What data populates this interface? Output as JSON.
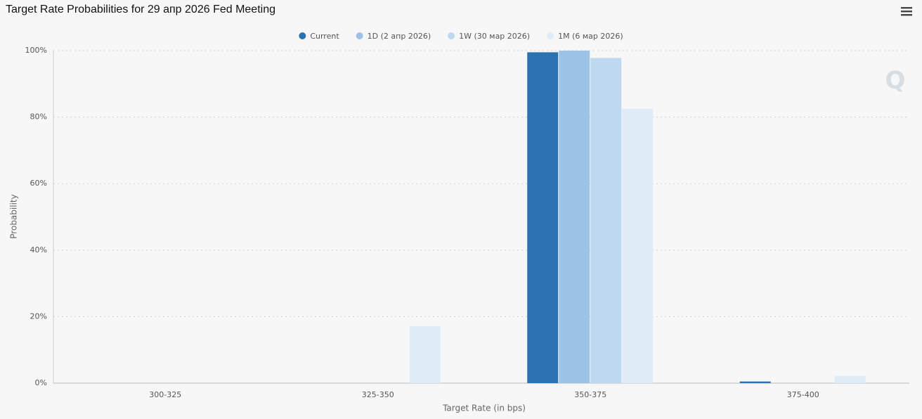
{
  "chart_data": {
    "type": "bar",
    "title": "Target Rate Probabilities for 29 апр 2026 Fed Meeting",
    "x_label": "Target Rate (in bps)",
    "y_label": "Probability",
    "categories": [
      "300-325",
      "325-350",
      "350-375",
      "375-400"
    ],
    "series": [
      {
        "name": "Current",
        "color": "#2b72b0",
        "values": [
          0,
          0,
          99.5,
          0.5
        ]
      },
      {
        "name": "1D (2 апр 2026)",
        "color": "#9cc3e6",
        "values": [
          0,
          0,
          100,
          0
        ]
      },
      {
        "name": "1W (30 мар 2026)",
        "color": "#bed8ef",
        "values": [
          0,
          0,
          97.8,
          0
        ]
      },
      {
        "name": "1M (6 мар 2026)",
        "color": "#dfebf6",
        "values": [
          0,
          17.1,
          82.5,
          2.2
        ]
      }
    ],
    "ylim": [
      0,
      100
    ],
    "yticks": [
      {
        "value": 0,
        "label": "0%"
      },
      {
        "value": 20,
        "label": "20%"
      },
      {
        "value": 40,
        "label": "40%"
      },
      {
        "value": 60,
        "label": "60%"
      },
      {
        "value": 80,
        "label": "80%"
      },
      {
        "value": 100,
        "label": "100%"
      }
    ],
    "grid": true
  }
}
